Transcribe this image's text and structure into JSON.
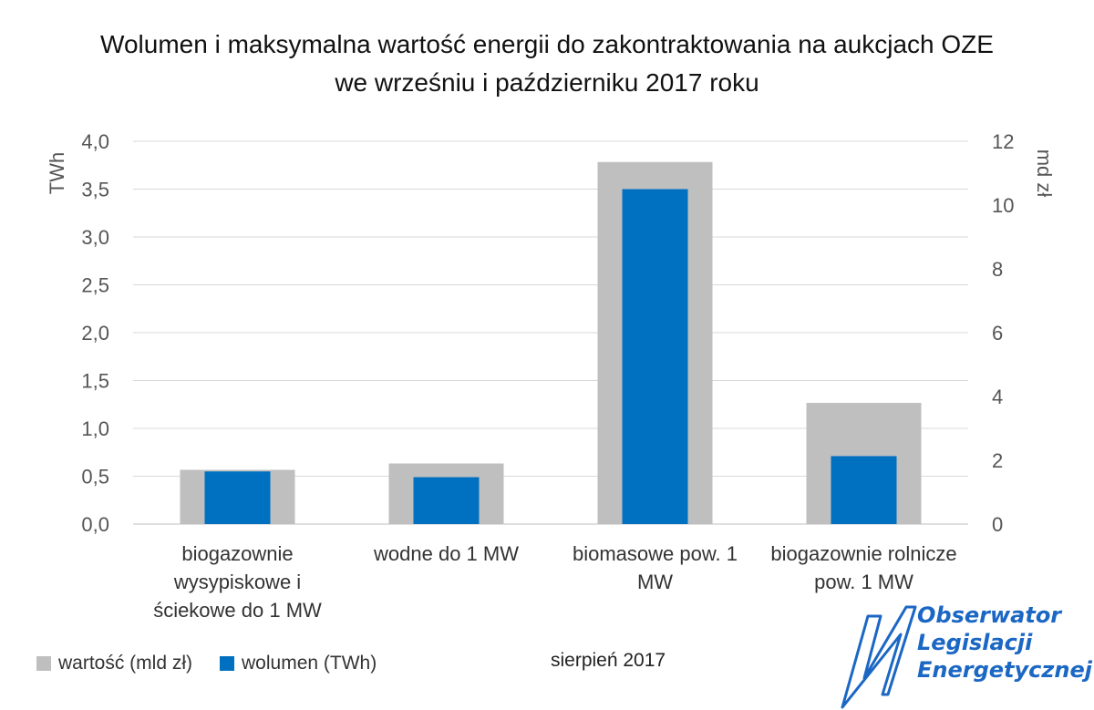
{
  "chart_data": {
    "type": "bar",
    "title_lines": [
      "Wolumen i maksymalna wartość energii do zakontraktowania na aukcjach OZE",
      "we wrześniu i październiku 2017 roku"
    ],
    "categories": [
      "biogazownie wysypiskowe i ściekowe do 1 MW",
      "wodne do 1 MW",
      "biomasowe pow. 1 MW",
      "biogazownie rolnicze pow. 1 MW"
    ],
    "category_label_lines": [
      [
        "biogazownie",
        "wysypiskowe i",
        "ściekowe do 1 MW"
      ],
      [
        "wodne do 1 MW"
      ],
      [
        "biomasowe pow. 1",
        "MW"
      ],
      [
        "biogazownie rolnicze",
        "pow. 1 MW"
      ]
    ],
    "series": [
      {
        "name": "wartość (mld zł)",
        "axis": "right",
        "color": "#bfbfbf",
        "values": [
          1.7,
          1.9,
          11.35,
          3.8
        ]
      },
      {
        "name": "wolumen (TWh)",
        "axis": "left",
        "color": "#0070c0",
        "values": [
          0.55,
          0.49,
          3.5,
          0.71
        ]
      }
    ],
    "y_left": {
      "label": "TWh",
      "range": [
        0,
        4
      ],
      "ticks": [
        "0,0",
        "0,5",
        "1,0",
        "1,5",
        "2,0",
        "2,5",
        "3,0",
        "3,5",
        "4,0"
      ]
    },
    "y_right": {
      "label": "md zł",
      "range": [
        0,
        12
      ],
      "ticks": [
        "0",
        "2",
        "4",
        "6",
        "8",
        "10",
        "12"
      ]
    },
    "grid": true,
    "legend_position": "bottom-left"
  },
  "date_note": "sierpień 2017",
  "logo": {
    "lines": [
      "Obserwator",
      "Legislacji",
      "Energetycznej"
    ],
    "color": "#1b67c4"
  }
}
